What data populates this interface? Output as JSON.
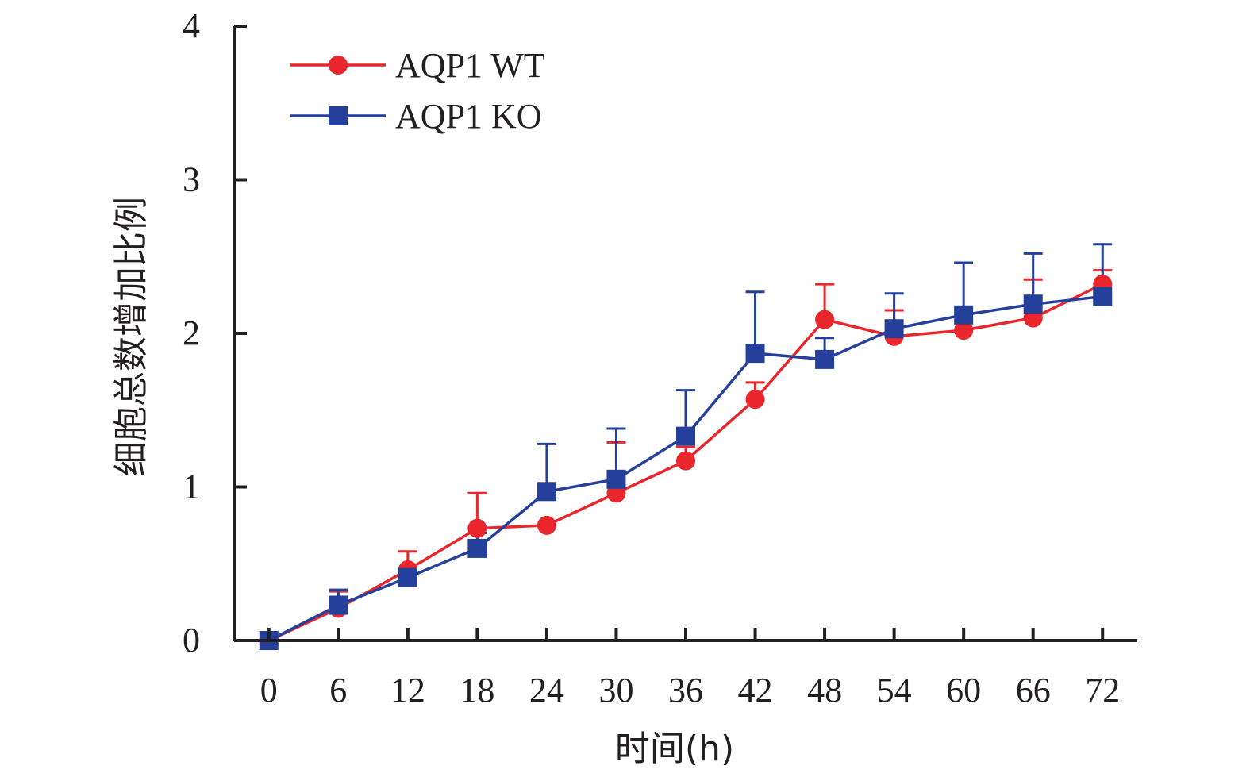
{
  "chart_data": {
    "type": "line",
    "x": [
      0,
      6,
      12,
      18,
      24,
      30,
      36,
      42,
      48,
      54,
      60,
      66,
      72
    ],
    "x_ticks": [
      "0",
      "6",
      "12",
      "18",
      "24",
      "30",
      "36",
      "42",
      "48",
      "54",
      "60",
      "66",
      "72"
    ],
    "y_ticks": [
      "0",
      "1",
      "2",
      "3",
      "4"
    ],
    "xlim": [
      -3,
      75
    ],
    "ylim": [
      0,
      4
    ],
    "xlabel": "时间(h)",
    "ylabel": "细胞总数增加比例",
    "grid": false,
    "legend_position": "top-left",
    "series": [
      {
        "name": "AQP1 WT",
        "color": "#e8262c",
        "marker": "circle",
        "values": [
          0,
          0.21,
          0.46,
          0.73,
          0.75,
          0.96,
          1.17,
          1.57,
          2.09,
          1.98,
          2.02,
          2.1,
          2.32
        ],
        "error": [
          0,
          0.11,
          0.12,
          0.23,
          0,
          0.33,
          0.09,
          0.11,
          0.23,
          0.17,
          0,
          0.25,
          0.09
        ]
      },
      {
        "name": "AQP1 KO",
        "color": "#25409b",
        "marker": "square",
        "values": [
          0,
          0.23,
          0.41,
          0.6,
          0.97,
          1.05,
          1.33,
          1.87,
          1.83,
          2.03,
          2.12,
          2.19,
          2.24
        ],
        "error": [
          0,
          0.1,
          0,
          0.1,
          0.31,
          0.33,
          0.3,
          0.4,
          0.14,
          0.23,
          0.34,
          0.33,
          0.34
        ]
      }
    ]
  }
}
